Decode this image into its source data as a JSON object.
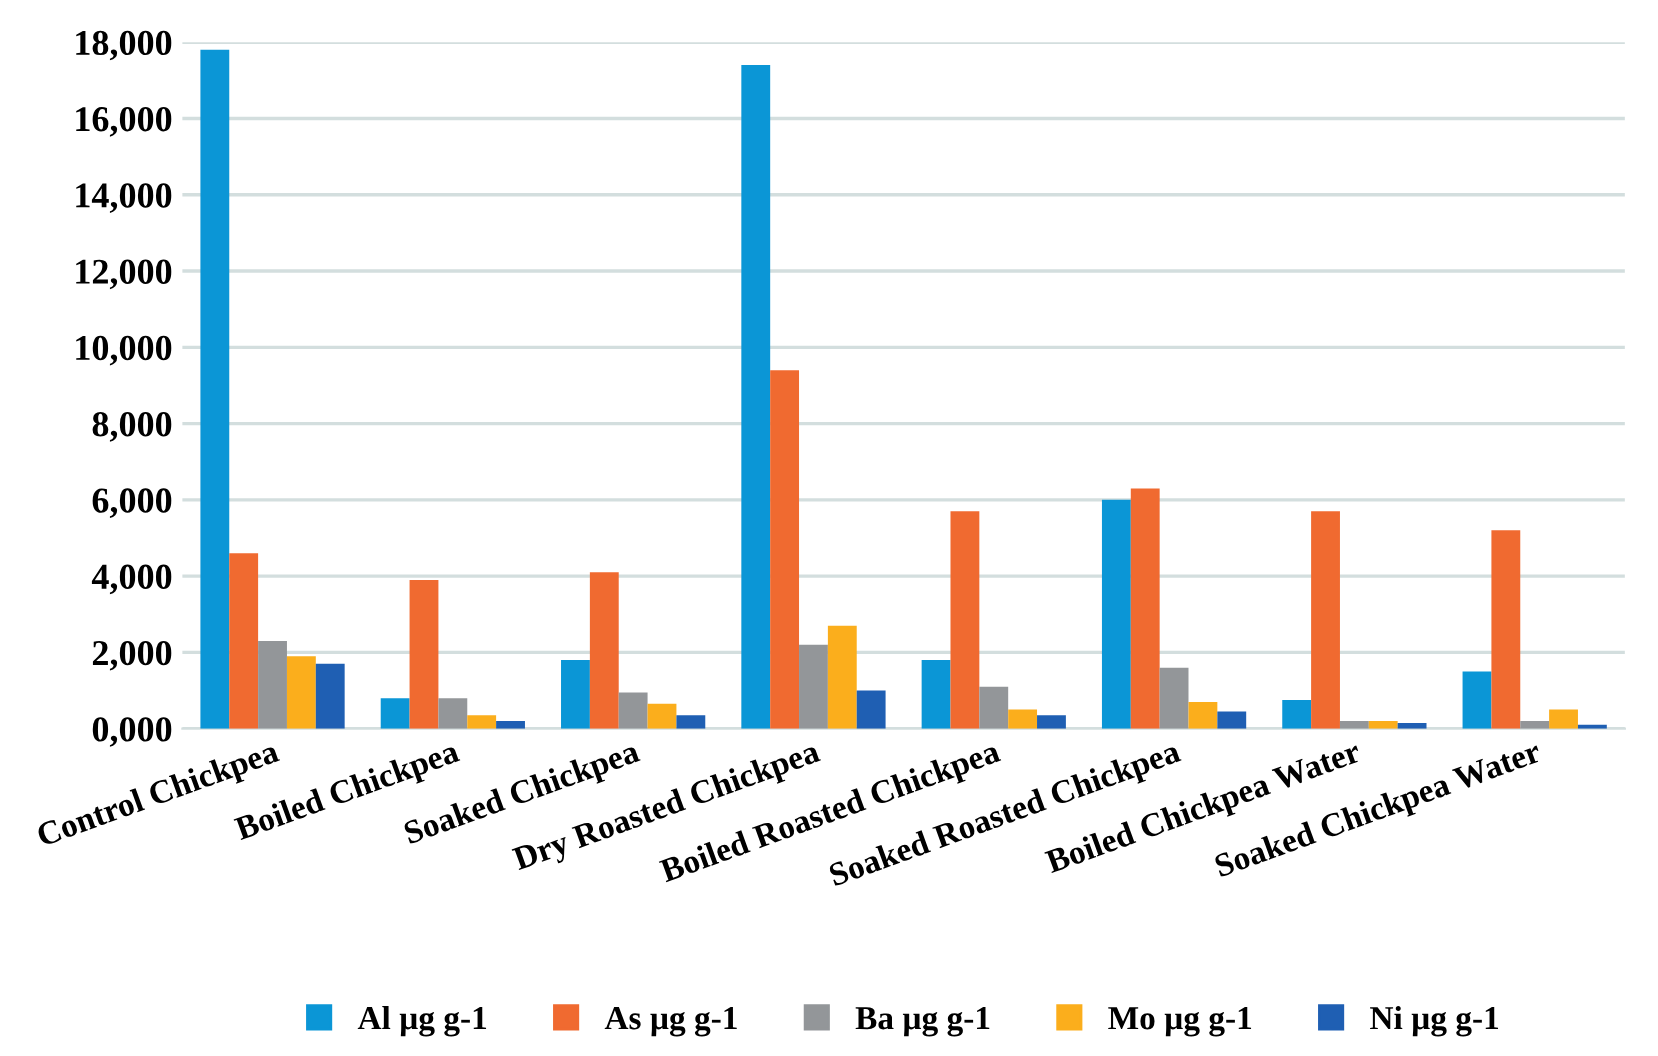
{
  "chart_data": {
    "type": "bar",
    "categories": [
      "Control Chickpea",
      "Boiled Chickpea",
      "Soaked Chickpea",
      "Dry Roasted Chickpea",
      "Boiled Roasted Chickpea",
      "Soaked Roasted Chickpea",
      "Boiled Chickpea Water",
      "Soaked Chickpea Water"
    ],
    "series": [
      {
        "name": "Al µg g-1",
        "color": "#0b96d6",
        "values": [
          17800,
          800,
          1800,
          17400,
          1800,
          6000,
          750,
          1500
        ]
      },
      {
        "name": "As µg g-1",
        "color": "#f06a30",
        "values": [
          4600,
          3900,
          4100,
          9400,
          5700,
          6300,
          5700,
          5200
        ]
      },
      {
        "name": "Ba µg g-1",
        "color": "#939699",
        "values": [
          2300,
          800,
          950,
          2200,
          1100,
          1600,
          200,
          200
        ]
      },
      {
        "name": "Mo µg g-1",
        "color": "#fbae1c",
        "values": [
          1900,
          350,
          650,
          2700,
          500,
          700,
          200,
          500
        ]
      },
      {
        "name": "Ni µg g-1",
        "color": "#1f5fb3",
        "values": [
          1700,
          200,
          350,
          1000,
          350,
          450,
          150,
          100
        ]
      }
    ],
    "ylim": [
      0,
      18000
    ],
    "yticks": [
      {
        "value": 0,
        "label": "0,000"
      },
      {
        "value": 2000,
        "label": "2,000"
      },
      {
        "value": 4000,
        "label": "4,000"
      },
      {
        "value": 6000,
        "label": "6,000"
      },
      {
        "value": 8000,
        "label": "8,000"
      },
      {
        "value": 10000,
        "label": "10,000"
      },
      {
        "value": 12000,
        "label": "12,000"
      },
      {
        "value": 14000,
        "label": "14,000"
      },
      {
        "value": 16000,
        "label": "16,000"
      },
      {
        "value": 18000,
        "label": "18,000"
      }
    ],
    "grid": "y",
    "legend": "bottom"
  }
}
